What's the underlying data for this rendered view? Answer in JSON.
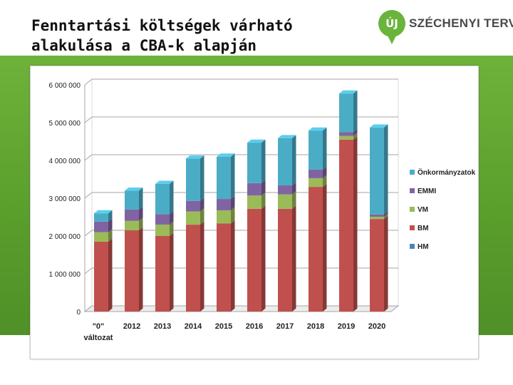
{
  "title": {
    "line1": "Fenntartási költségek várható",
    "line2": "alakulása a CBA-k alapján"
  },
  "logo": {
    "mark": "ÚJ",
    "text": "SZÉCHENYI TERV",
    "icon": "szechenyi-terv-logo-icon"
  },
  "chart_data": {
    "type": "bar",
    "stacked": true,
    "three_d": true,
    "categories": [
      "\"0\" változat",
      "2012",
      "2013",
      "2014",
      "2015",
      "2016",
      "2017",
      "2018",
      "2019",
      "2020"
    ],
    "category_lines": [
      [
        "\"0\"",
        "változat"
      ],
      [
        "2012"
      ],
      [
        "2013"
      ],
      [
        "2014"
      ],
      [
        "2015"
      ],
      [
        "2016"
      ],
      [
        "2017"
      ],
      [
        "2018"
      ],
      [
        "2019"
      ],
      [
        "2020"
      ]
    ],
    "series": [
      {
        "name": "HM",
        "color": "#4f81bd",
        "values": [
          0,
          0,
          0,
          0,
          0,
          0,
          0,
          0,
          0,
          0
        ]
      },
      {
        "name": "BM",
        "color": "#c0504d",
        "values": [
          1850000,
          2150000,
          2000000,
          2300000,
          2330000,
          2720000,
          2720000,
          3300000,
          4550000,
          2450000
        ]
      },
      {
        "name": "VM",
        "color": "#9bbb59",
        "values": [
          250000,
          250000,
          300000,
          350000,
          350000,
          350000,
          380000,
          230000,
          100000,
          60000
        ]
      },
      {
        "name": "EMMI",
        "color": "#8064a2",
        "values": [
          280000,
          300000,
          280000,
          280000,
          300000,
          330000,
          240000,
          230000,
          100000,
          60000
        ]
      },
      {
        "name": "Önkormányzatok",
        "color": "#4bacc6",
        "values": [
          220000,
          500000,
          800000,
          1120000,
          1120000,
          1070000,
          1250000,
          1030000,
          1020000,
          2300000
        ]
      }
    ],
    "legend_order": [
      "Önkormányzatok",
      "EMMI",
      "VM",
      "BM",
      "HM"
    ],
    "legend_position": "right",
    "ylim": [
      0,
      6000000
    ],
    "yticks": [
      0,
      1000000,
      2000000,
      3000000,
      4000000,
      5000000,
      6000000
    ],
    "ytick_labels": [
      "0",
      "1 000 000",
      "2 000 000",
      "3 000 000",
      "4 000 000",
      "5 000 000",
      "6 000 000"
    ],
    "grid": true,
    "xlabel": "",
    "ylabel": ""
  }
}
